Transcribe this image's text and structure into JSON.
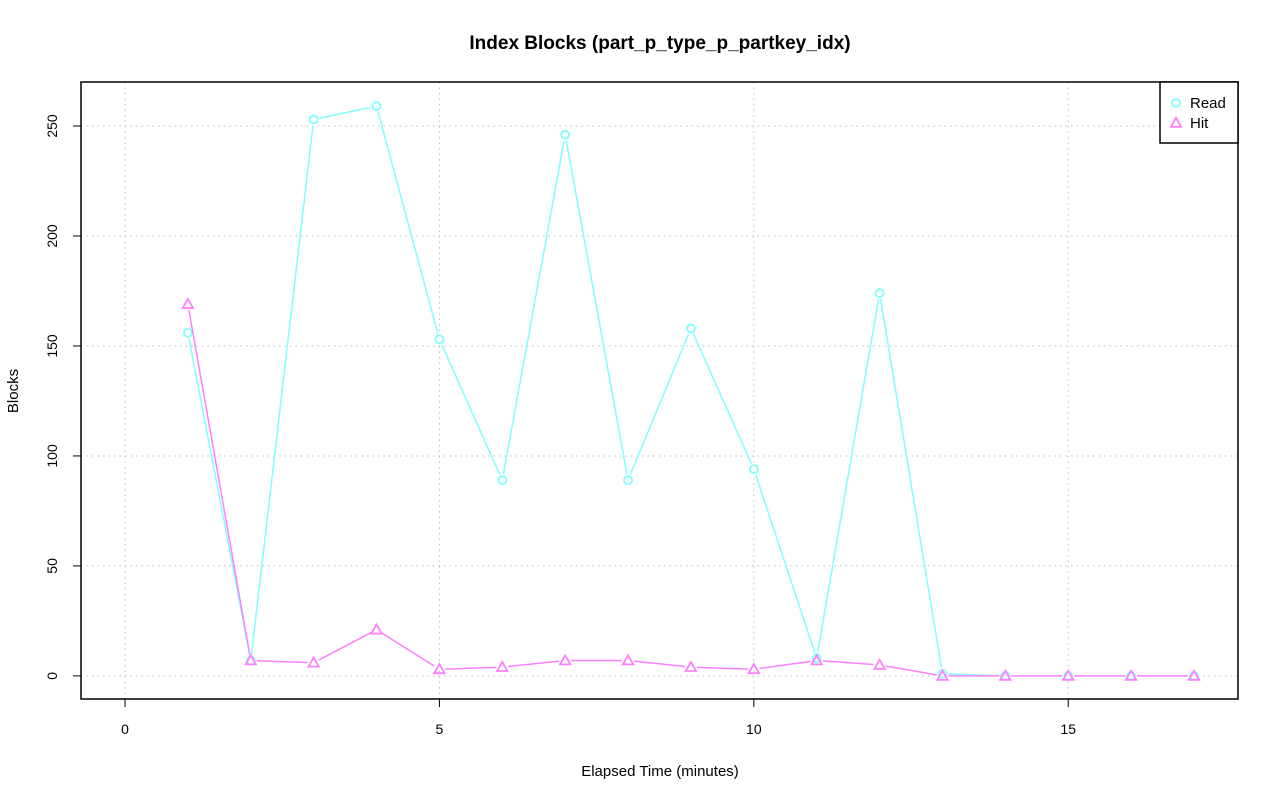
{
  "chart_data": {
    "type": "line",
    "title": "Index Blocks (part_p_type_p_partkey_idx)",
    "xlabel": "Elapsed Time (minutes)",
    "ylabel": "Blocks",
    "xlim": [
      -0.7,
      17.7
    ],
    "ylim": [
      -10.5,
      270
    ],
    "x_ticks": [
      0,
      5,
      10,
      15
    ],
    "y_ticks": [
      0,
      50,
      100,
      150,
      200,
      250
    ],
    "grid": true,
    "legend": "top-right",
    "x": [
      1,
      2,
      3,
      4,
      5,
      6,
      7,
      8,
      9,
      10,
      11,
      12,
      13,
      14,
      15,
      16,
      17
    ],
    "series": [
      {
        "name": "Read",
        "color": "#80ffff",
        "marker": "circle",
        "values": [
          156,
          7,
          253,
          259,
          153,
          89,
          246,
          89,
          158,
          94,
          8,
          174,
          1,
          0,
          0,
          0,
          0
        ]
      },
      {
        "name": "Hit",
        "color": "#ff80ff",
        "marker": "triangle",
        "values": [
          169,
          7,
          6,
          21,
          3,
          4,
          7,
          7,
          4,
          3,
          7,
          5,
          0,
          0,
          0,
          0,
          0
        ]
      }
    ]
  }
}
